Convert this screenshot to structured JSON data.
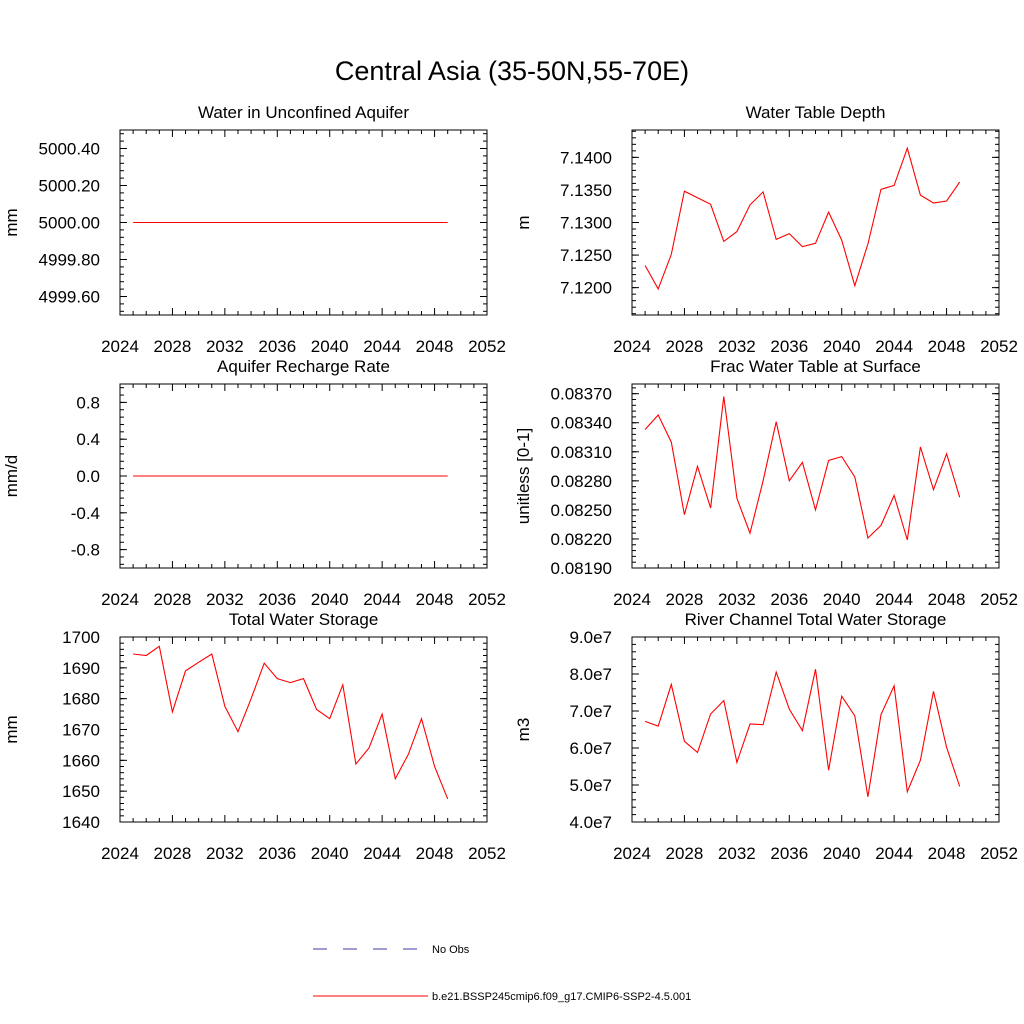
{
  "title": "Central Asia (35-50N,55-70E)",
  "colors": {
    "model": "#ff0000",
    "obs": "#3a3aa0",
    "axis": "#000000"
  },
  "legend": {
    "obs_label": "No Obs",
    "model_label": "b.e21.BSSP245cmip6.f09_g17.CMIP6-SSP2-4.5.001"
  },
  "chart_data": [
    {
      "type": "line",
      "title": "Water in Unconfined Aquifer",
      "ylabel": "mm",
      "xlim": [
        2024,
        2052
      ],
      "x_ticks": [
        "2024",
        "2028",
        "2032",
        "2036",
        "2040",
        "2044",
        "2048",
        "2052"
      ],
      "ylim": [
        4999.5,
        5000.5
      ],
      "y_ticks": [
        4999.6,
        4999.8,
        5000.0,
        5000.2,
        5000.4
      ],
      "y_tick_labels": [
        "4999.60",
        "4999.80",
        "5000.00",
        "5000.20",
        "5000.40"
      ],
      "series": [
        {
          "x": [
            2025,
            2049
          ],
          "values": [
            5000.0,
            5000.0
          ]
        }
      ]
    },
    {
      "type": "line",
      "title": "Water Table Depth",
      "ylabel": "m",
      "xlim": [
        2024,
        2052
      ],
      "x_ticks": [
        "2024",
        "2028",
        "2032",
        "2036",
        "2040",
        "2044",
        "2048",
        "2052"
      ],
      "ylim": [
        7.1158,
        7.1442
      ],
      "y_ticks": [
        7.12,
        7.125,
        7.13,
        7.135,
        7.14
      ],
      "y_tick_labels": [
        "7.1200",
        "7.1250",
        "7.1300",
        "7.1350",
        "7.1400"
      ],
      "series": [
        {
          "x": [
            2025,
            2026,
            2027,
            2028,
            2029,
            2030,
            2031,
            2032,
            2033,
            2034,
            2035,
            2036,
            2037,
            2038,
            2039,
            2040,
            2041,
            2042,
            2043,
            2044,
            2045,
            2046,
            2047,
            2048,
            2049
          ],
          "values": [
            7.1234,
            7.1198,
            7.1251,
            7.1348,
            7.1338,
            7.1328,
            7.1271,
            7.1286,
            7.1327,
            7.1347,
            7.1274,
            7.1283,
            7.1263,
            7.1268,
            7.1316,
            7.1273,
            7.1203,
            7.1267,
            7.1351,
            7.1357,
            7.1414,
            7.1342,
            7.133,
            7.1333,
            7.1362
          ]
        }
      ]
    },
    {
      "type": "line",
      "title": "Aquifer Recharge Rate",
      "ylabel": "mm/d",
      "xlim": [
        2024,
        2052
      ],
      "x_ticks": [
        "2024",
        "2028",
        "2032",
        "2036",
        "2040",
        "2044",
        "2048",
        "2052"
      ],
      "ylim": [
        -1.0,
        1.0
      ],
      "y_ticks": [
        -0.8,
        -0.4,
        0.0,
        0.4,
        0.8
      ],
      "y_tick_labels": [
        "-0.8",
        "-0.4",
        "0.0",
        "0.4",
        "0.8"
      ],
      "series": [
        {
          "x": [
            2025,
            2049
          ],
          "values": [
            0.0,
            0.0
          ]
        }
      ]
    },
    {
      "type": "line",
      "title": "Frac Water Table at Surface",
      "ylabel": "unitless [0-1]",
      "xlim": [
        2024,
        2052
      ],
      "x_ticks": [
        "2024",
        "2028",
        "2032",
        "2036",
        "2040",
        "2044",
        "2048",
        "2052"
      ],
      "ylim": [
        0.0819,
        0.0838
      ],
      "y_ticks": [
        0.0819,
        0.0822,
        0.0825,
        0.0828,
        0.0831,
        0.0834,
        0.0837
      ],
      "y_tick_labels": [
        "0.08190",
        "0.08220",
        "0.08250",
        "0.08280",
        "0.08310",
        "0.08340",
        "0.08370"
      ],
      "series": [
        {
          "x": [
            2025,
            2026,
            2027,
            2028,
            2029,
            2030,
            2031,
            2032,
            2033,
            2034,
            2035,
            2036,
            2037,
            2038,
            2039,
            2040,
            2041,
            2042,
            2043,
            2044,
            2045,
            2046,
            2047,
            2048,
            2049
          ],
          "values": [
            0.08333,
            0.08348,
            0.0832,
            0.08245,
            0.08295,
            0.08252,
            0.08367,
            0.08262,
            0.08226,
            0.0828,
            0.08341,
            0.0828,
            0.08299,
            0.0825,
            0.08301,
            0.08305,
            0.08284,
            0.08221,
            0.08234,
            0.08265,
            0.08219,
            0.08315,
            0.08271,
            0.08308,
            0.08263
          ]
        }
      ]
    },
    {
      "type": "line",
      "title": "Total Water Storage",
      "ylabel": "mm",
      "xlim": [
        2024,
        2052
      ],
      "x_ticks": [
        "2024",
        "2028",
        "2032",
        "2036",
        "2040",
        "2044",
        "2048",
        "2052"
      ],
      "ylim": [
        1640,
        1700
      ],
      "y_ticks": [
        1640,
        1650,
        1660,
        1670,
        1680,
        1690,
        1700
      ],
      "y_tick_labels": [
        "1640",
        "1650",
        "1660",
        "1670",
        "1680",
        "1690",
        "1700"
      ],
      "series": [
        {
          "x": [
            2025,
            2026,
            2027,
            2028,
            2029,
            2030,
            2031,
            2032,
            2033,
            2034,
            2035,
            2036,
            2037,
            2038,
            2039,
            2040,
            2041,
            2042,
            2043,
            2044,
            2045,
            2046,
            2047,
            2048,
            2049
          ],
          "values": [
            1694.5,
            1694.0,
            1697.0,
            1675.7,
            1689.0,
            1691.8,
            1694.5,
            1677.5,
            1669.3,
            1680.0,
            1691.5,
            1686.5,
            1685.2,
            1686.5,
            1676.5,
            1673.5,
            1684.5,
            1658.8,
            1664.0,
            1675.0,
            1654.0,
            1662.0,
            1673.5,
            1658.0,
            1647.5
          ]
        }
      ]
    },
    {
      "type": "line",
      "title": "River Channel Total Water Storage",
      "ylabel": "m3",
      "xlim": [
        2024,
        2052
      ],
      "x_ticks": [
        "2024",
        "2028",
        "2032",
        "2036",
        "2040",
        "2044",
        "2048",
        "2052"
      ],
      "ylim": [
        40000000,
        90000000
      ],
      "y_ticks": [
        40000000,
        50000000,
        60000000,
        70000000,
        80000000,
        90000000
      ],
      "y_tick_labels": [
        "4.0e7",
        "5.0e7",
        "6.0e7",
        "7.0e7",
        "8.0e7",
        "9.0e7"
      ],
      "series": [
        {
          "x": [
            2025,
            2026,
            2027,
            2028,
            2029,
            2030,
            2031,
            2032,
            2033,
            2034,
            2035,
            2036,
            2037,
            2038,
            2039,
            2040,
            2041,
            2042,
            2043,
            2044,
            2045,
            2046,
            2047,
            2048,
            2049
          ],
          "values": [
            67200000,
            65900000,
            77200000,
            61800000,
            58800000,
            69200000,
            72800000,
            56100000,
            66500000,
            66300000,
            80500000,
            70500000,
            64700000,
            81300000,
            54000000,
            74000000,
            68700000,
            46800000,
            69000000,
            76800000,
            48200000,
            56700000,
            75300000,
            60200000,
            49600000
          ]
        }
      ]
    }
  ]
}
